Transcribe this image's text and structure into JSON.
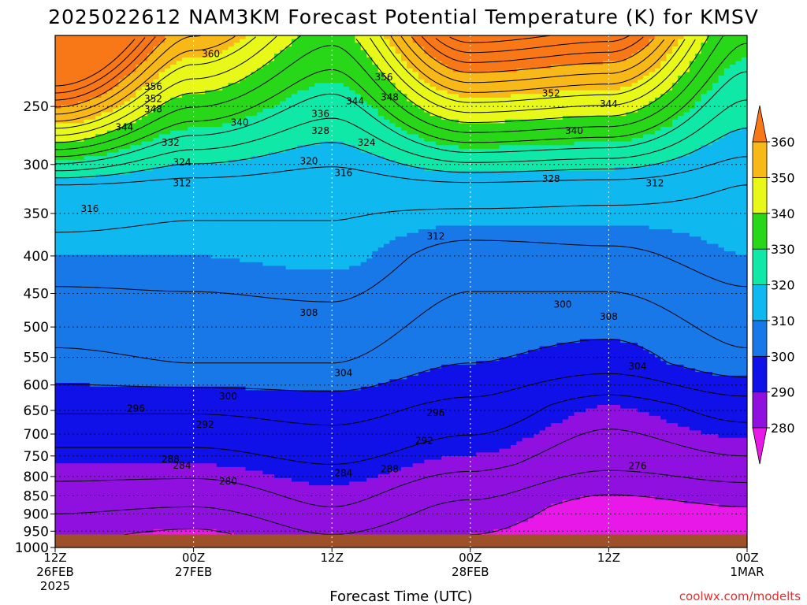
{
  "chart_data": {
    "type": "heatmap",
    "title": "2025022612 NAM3KM Forecast Potential Temperature (K) for KMSV",
    "xlabel": "Forecast Time (UTC)",
    "ylabel": "",
    "credit": "coolwx.com/modelts",
    "x_ticks": [
      {
        "hours": 0,
        "line1": "12Z",
        "line2": "26FEB",
        "line3": "2025"
      },
      {
        "hours": 12,
        "line1": "00Z",
        "line2": "27FEB",
        "line3": ""
      },
      {
        "hours": 24,
        "line1": "12Z",
        "line2": "",
        "line3": ""
      },
      {
        "hours": 36,
        "line1": "00Z",
        "line2": "28FEB",
        "line3": ""
      },
      {
        "hours": 48,
        "line1": "12Z",
        "line2": "",
        "line3": ""
      },
      {
        "hours": 60,
        "line1": "00Z",
        "line2": "1MAR",
        "line3": ""
      }
    ],
    "x_range": [
      0,
      60
    ],
    "y_ticks": [
      250,
      300,
      350,
      400,
      450,
      500,
      550,
      600,
      650,
      700,
      750,
      800,
      850,
      900,
      950,
      1000
    ],
    "y_range": [
      200,
      1000
    ],
    "colorbar": {
      "ticks": [
        360,
        350,
        340,
        330,
        320,
        310,
        300,
        290,
        280
      ],
      "bands": [
        {
          "min": 280,
          "max": 290,
          "color": "#9010e0"
        },
        {
          "min": 290,
          "max": 300,
          "color": "#1010e8"
        },
        {
          "min": 300,
          "max": 310,
          "color": "#1878e8"
        },
        {
          "min": 310,
          "max": 320,
          "color": "#10b8f0"
        },
        {
          "min": 320,
          "max": 330,
          "color": "#10e8a8"
        },
        {
          "min": 330,
          "max": 340,
          "color": "#28d818"
        },
        {
          "min": 340,
          "max": 350,
          "color": "#e8f818"
        },
        {
          "min": 350,
          "max": 360,
          "color": "#f8b818"
        }
      ],
      "under_color": "#e818e8",
      "over_color": "#f87818"
    },
    "ground_color": "#a05028",
    "surface_pressure_hpa": 960,
    "columns": [
      {
        "hours": 0,
        "levels": [
          {
            "p": 280,
            "theta": 340
          },
          {
            "p": 320,
            "theta": 316
          },
          {
            "p": 400,
            "theta": 310
          },
          {
            "p": 560,
            "theta": 303
          },
          {
            "p": 640,
            "theta": 297
          },
          {
            "p": 770,
            "theta": 290
          },
          {
            "p": 880,
            "theta": 285
          },
          {
            "p": 960,
            "theta": 281
          }
        ]
      },
      {
        "hours": 12,
        "levels": [
          {
            "p": 280,
            "theta": 326
          },
          {
            "p": 320,
            "theta": 314
          },
          {
            "p": 400,
            "theta": 310
          },
          {
            "p": 560,
            "theta": 304
          },
          {
            "p": 640,
            "theta": 297
          },
          {
            "p": 770,
            "theta": 290
          },
          {
            "p": 880,
            "theta": 284
          },
          {
            "p": 960,
            "theta": 279
          }
        ]
      },
      {
        "hours": 24,
        "levels": [
          {
            "p": 280,
            "theta": 320
          },
          {
            "p": 320,
            "theta": 313
          },
          {
            "p": 400,
            "theta": 311
          },
          {
            "p": 560,
            "theta": 304
          },
          {
            "p": 640,
            "theta": 298
          },
          {
            "p": 770,
            "theta": 292
          },
          {
            "p": 880,
            "theta": 288
          },
          {
            "p": 960,
            "theta": 284
          }
        ]
      },
      {
        "hours": 36,
        "levels": [
          {
            "p": 280,
            "theta": 332
          },
          {
            "p": 320,
            "theta": 315
          },
          {
            "p": 400,
            "theta": 306
          },
          {
            "p": 560,
            "theta": 300
          },
          {
            "p": 640,
            "theta": 295
          },
          {
            "p": 770,
            "theta": 289
          },
          {
            "p": 880,
            "theta": 283
          },
          {
            "p": 960,
            "theta": 280
          }
        ]
      },
      {
        "hours": 48,
        "levels": [
          {
            "p": 280,
            "theta": 330
          },
          {
            "p": 320,
            "theta": 314
          },
          {
            "p": 400,
            "theta": 307
          },
          {
            "p": 560,
            "theta": 298
          },
          {
            "p": 640,
            "theta": 290
          },
          {
            "p": 770,
            "theta": 285
          },
          {
            "p": 880,
            "theta": 278
          },
          {
            "p": 960,
            "theta": 276
          }
        ]
      },
      {
        "hours": 60,
        "levels": [
          {
            "p": 280,
            "theta": 318
          },
          {
            "p": 320,
            "theta": 312
          },
          {
            "p": 400,
            "theta": 310
          },
          {
            "p": 560,
            "theta": 303
          },
          {
            "p": 640,
            "theta": 294
          },
          {
            "p": 770,
            "theta": 287
          },
          {
            "p": 880,
            "theta": 280
          },
          {
            "p": 960,
            "theta": 277
          }
        ]
      }
    ],
    "contour_labels": [
      {
        "hours": 13.5,
        "p": 212,
        "text": "360"
      },
      {
        "hours": 8.5,
        "p": 235,
        "text": "356"
      },
      {
        "hours": 8.5,
        "p": 244,
        "text": "352"
      },
      {
        "hours": 8.5,
        "p": 252,
        "text": "348"
      },
      {
        "hours": 28.5,
        "p": 228,
        "text": "356"
      },
      {
        "hours": 26,
        "p": 246,
        "text": "344"
      },
      {
        "hours": 29,
        "p": 243,
        "text": "348"
      },
      {
        "hours": 43,
        "p": 240,
        "text": "352"
      },
      {
        "hours": 48,
        "p": 248,
        "text": "344"
      },
      {
        "hours": 6,
        "p": 267,
        "text": "344"
      },
      {
        "hours": 16,
        "p": 263,
        "text": "340"
      },
      {
        "hours": 23,
        "p": 256,
        "text": "336"
      },
      {
        "hours": 23,
        "p": 270,
        "text": "328"
      },
      {
        "hours": 45,
        "p": 270,
        "text": "340"
      },
      {
        "hours": 10,
        "p": 280,
        "text": "332"
      },
      {
        "hours": 27,
        "p": 280,
        "text": "324"
      },
      {
        "hours": 11,
        "p": 298,
        "text": "324"
      },
      {
        "hours": 22,
        "p": 297,
        "text": "320"
      },
      {
        "hours": 25,
        "p": 308,
        "text": "316"
      },
      {
        "hours": 43,
        "p": 314,
        "text": "328"
      },
      {
        "hours": 11,
        "p": 318,
        "text": "312"
      },
      {
        "hours": 52,
        "p": 318,
        "text": "312"
      },
      {
        "hours": 3,
        "p": 345,
        "text": "316"
      },
      {
        "hours": 33,
        "p": 376,
        "text": "312"
      },
      {
        "hours": 22,
        "p": 478,
        "text": "308"
      },
      {
        "hours": 48,
        "p": 484,
        "text": "308"
      },
      {
        "hours": 44,
        "p": 466,
        "text": "300"
      },
      {
        "hours": 25,
        "p": 578,
        "text": "304"
      },
      {
        "hours": 50.5,
        "p": 566,
        "text": "304"
      },
      {
        "hours": 15,
        "p": 622,
        "text": "300"
      },
      {
        "hours": 7,
        "p": 646,
        "text": "296"
      },
      {
        "hours": 33,
        "p": 655,
        "text": "296"
      },
      {
        "hours": 13,
        "p": 680,
        "text": "292"
      },
      {
        "hours": 32,
        "p": 715,
        "text": "292"
      },
      {
        "hours": 10,
        "p": 758,
        "text": "288"
      },
      {
        "hours": 11,
        "p": 773,
        "text": "284"
      },
      {
        "hours": 29,
        "p": 782,
        "text": "288"
      },
      {
        "hours": 25,
        "p": 791,
        "text": "284"
      },
      {
        "hours": 15,
        "p": 812,
        "text": "280"
      },
      {
        "hours": 50.5,
        "p": 774,
        "text": "276"
      }
    ]
  }
}
